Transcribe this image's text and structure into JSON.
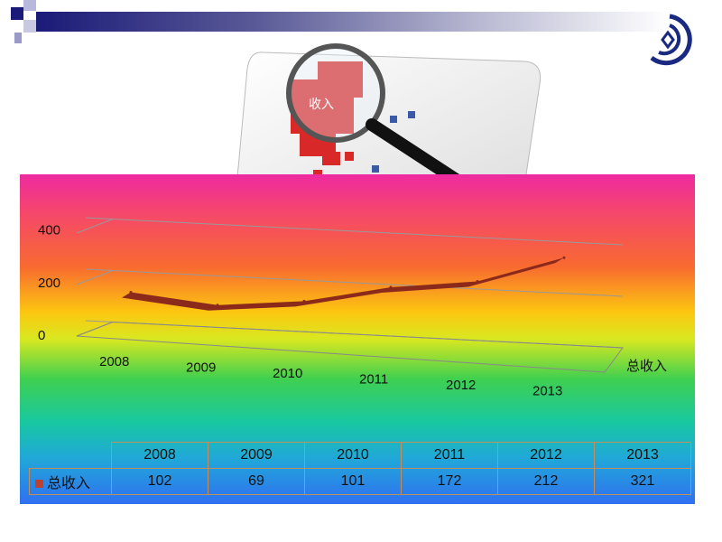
{
  "photo": {
    "caption": "收入"
  },
  "chart_data": {
    "type": "line",
    "style": "3d",
    "categories": [
      "2008",
      "2009",
      "2010",
      "2011",
      "2012",
      "2013"
    ],
    "series": [
      {
        "name": "总收入",
        "values": [
          102,
          69,
          101,
          172,
          212,
          321
        ],
        "color": "#8b2a1a"
      }
    ],
    "ylim": [
      0,
      400
    ],
    "yticks": [
      "0",
      "200",
      "400"
    ],
    "grid": true,
    "legend": "data-table"
  },
  "table": {
    "legend_color": "#c04030"
  }
}
